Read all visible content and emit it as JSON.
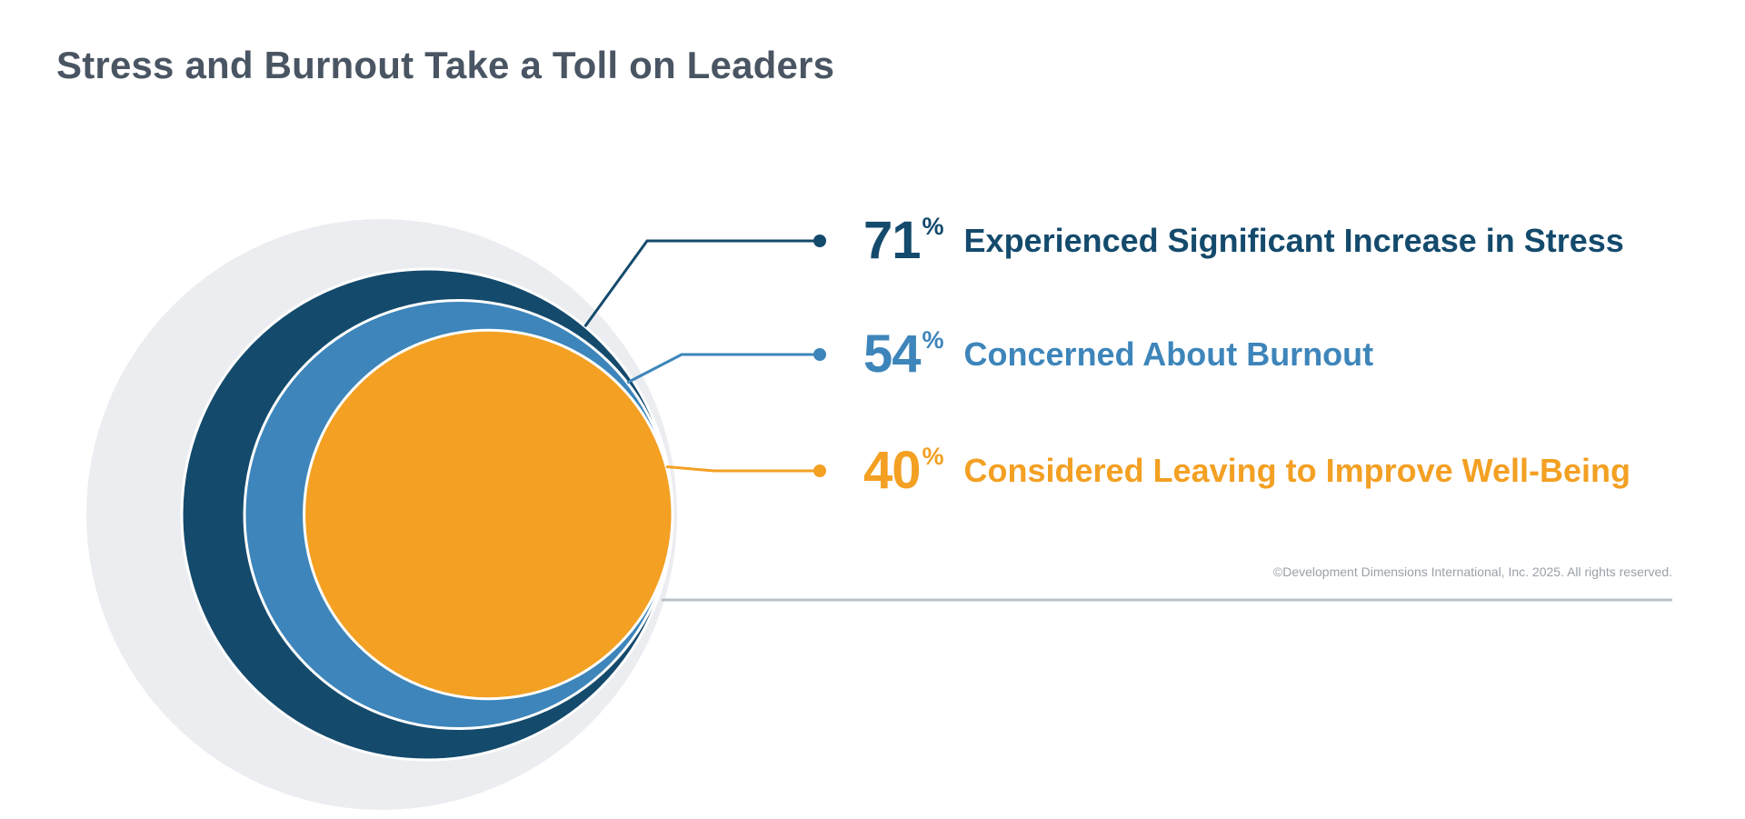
{
  "title": "Stress and Burnout Take a Toll on Leaders",
  "colors": {
    "background_circle": "#ebedf0",
    "accent_dark": "#144a6c",
    "accent_mid": "#3d85ba",
    "accent_orange": "#f3a023",
    "title_text": "#4a5563",
    "divider": "#b9c0c8"
  },
  "chart_data": {
    "type": "nested-circles",
    "unit": "%",
    "items": [
      {
        "value": 71,
        "label": "Experienced Significant Increase in Stress",
        "color": "#144a6c"
      },
      {
        "value": 54,
        "label": "Concerned About Burnout",
        "color": "#3d85ba"
      },
      {
        "value": 40,
        "label": "Considered Leaving to Improve Well-Being",
        "color": "#f3a023"
      }
    ]
  },
  "copyright": "©Development Dimensions International, Inc. 2025. All rights reserved."
}
